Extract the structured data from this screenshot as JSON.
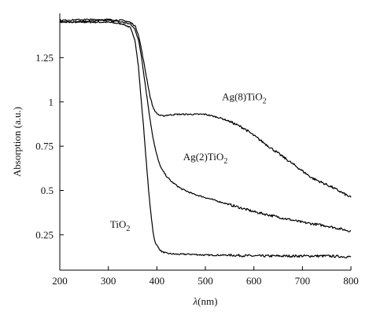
{
  "chart_data": {
    "type": "line",
    "xlabel_symbol": "λ",
    "xlabel_unit": "(nm)",
    "ylabel": "Absorption (a.u.)",
    "xlim": [
      200,
      800
    ],
    "ylim": [
      0.05,
      1.5
    ],
    "xticks": [
      200,
      300,
      400,
      500,
      600,
      700,
      800
    ],
    "yticks": [
      0.25,
      0.5,
      0.75,
      1,
      1.25
    ],
    "ytick_labels": [
      "0.25",
      "0.5",
      "0.75",
      "1",
      "1.25"
    ],
    "grid": false,
    "series": [
      {
        "name_base": "TiO",
        "name_sub": "2",
        "x": [
          200,
          250,
          300,
          330,
          345,
          355,
          362,
          368,
          372,
          376,
          380,
          384,
          388,
          392,
          396,
          400,
          405,
          410,
          420,
          440,
          470,
          500,
          550,
          600,
          650,
          700,
          750,
          800
        ],
        "y": [
          1.45,
          1.45,
          1.45,
          1.44,
          1.42,
          1.35,
          1.2,
          1.0,
          0.88,
          0.74,
          0.6,
          0.47,
          0.36,
          0.27,
          0.21,
          0.19,
          0.17,
          0.155,
          0.145,
          0.14,
          0.14,
          0.135,
          0.135,
          0.13,
          0.13,
          0.13,
          0.13,
          0.125
        ]
      },
      {
        "name_base": "Ag(2)TiO",
        "name_sub": "2",
        "x": [
          200,
          250,
          300,
          330,
          345,
          355,
          362,
          368,
          374,
          380,
          386,
          392,
          398,
          404,
          410,
          420,
          430,
          450,
          475,
          500,
          550,
          600,
          650,
          700,
          750,
          800
        ],
        "y": [
          1.45,
          1.455,
          1.46,
          1.45,
          1.44,
          1.41,
          1.35,
          1.26,
          1.14,
          1.02,
          0.9,
          0.8,
          0.72,
          0.66,
          0.62,
          0.58,
          0.55,
          0.51,
          0.48,
          0.46,
          0.42,
          0.38,
          0.35,
          0.32,
          0.3,
          0.27
        ]
      },
      {
        "name_base": "Ag(8)TiO",
        "name_sub": "2",
        "x": [
          200,
          250,
          300,
          330,
          345,
          355,
          362,
          368,
          374,
          380,
          386,
          392,
          398,
          405,
          412,
          420,
          440,
          470,
          500,
          530,
          550,
          580,
          600,
          640,
          680,
          720,
          760,
          800
        ],
        "y": [
          1.46,
          1.465,
          1.465,
          1.46,
          1.45,
          1.43,
          1.38,
          1.3,
          1.21,
          1.12,
          1.03,
          0.97,
          0.94,
          0.925,
          0.92,
          0.925,
          0.93,
          0.93,
          0.93,
          0.91,
          0.89,
          0.85,
          0.81,
          0.73,
          0.65,
          0.57,
          0.52,
          0.46
        ]
      }
    ]
  }
}
